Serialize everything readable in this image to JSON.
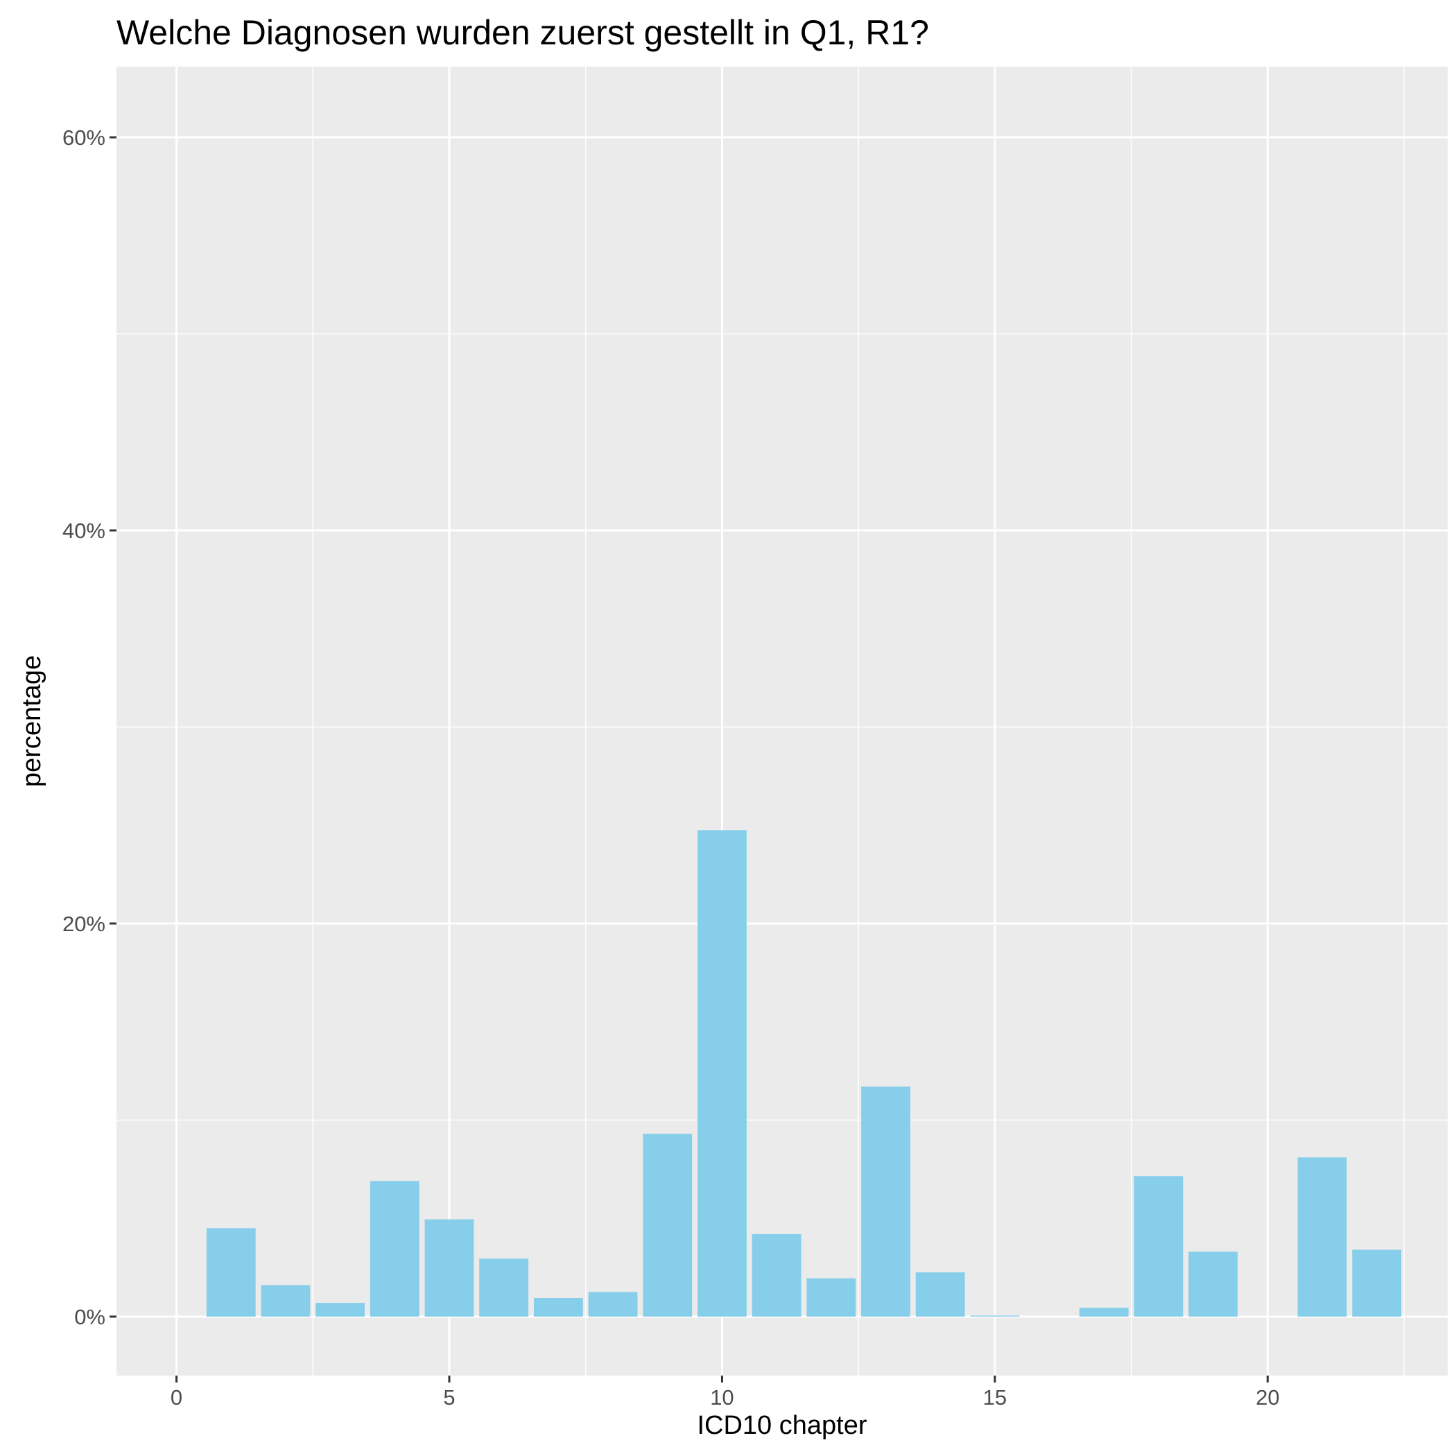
{
  "chart_data": {
    "type": "bar",
    "title": "Welche Diagnosen wurden zuerst gestellt in Q1, R1?",
    "xlabel": "ICD10 chapter",
    "ylabel": "percentage",
    "x": [
      1,
      2,
      3,
      4,
      5,
      6,
      7,
      8,
      9,
      10,
      11,
      12,
      13,
      14,
      15,
      16,
      17,
      18,
      19,
      20,
      21,
      22
    ],
    "values": [
      4.5,
      1.6,
      0.7,
      6.9,
      4.95,
      2.95,
      0.95,
      1.25,
      9.3,
      24.75,
      4.2,
      1.95,
      11.7,
      2.25,
      0.05,
      0.0,
      0.45,
      7.15,
      3.3,
      0.0,
      8.1,
      3.4
    ],
    "xlim": [
      -1.1,
      23.3
    ],
    "ylim": [
      -3.0,
      63.6
    ],
    "x_ticks": [
      0,
      5,
      10,
      15,
      20
    ],
    "x_tick_labels": [
      "0",
      "5",
      "10",
      "15",
      "20"
    ],
    "y_ticks": [
      0,
      20,
      40,
      60
    ],
    "y_tick_labels": [
      "0%",
      "20%",
      "40%",
      "60%"
    ],
    "bar_color": "#87ceeb",
    "panel_background": "#ebebeb",
    "grid": true,
    "legend": "none"
  }
}
